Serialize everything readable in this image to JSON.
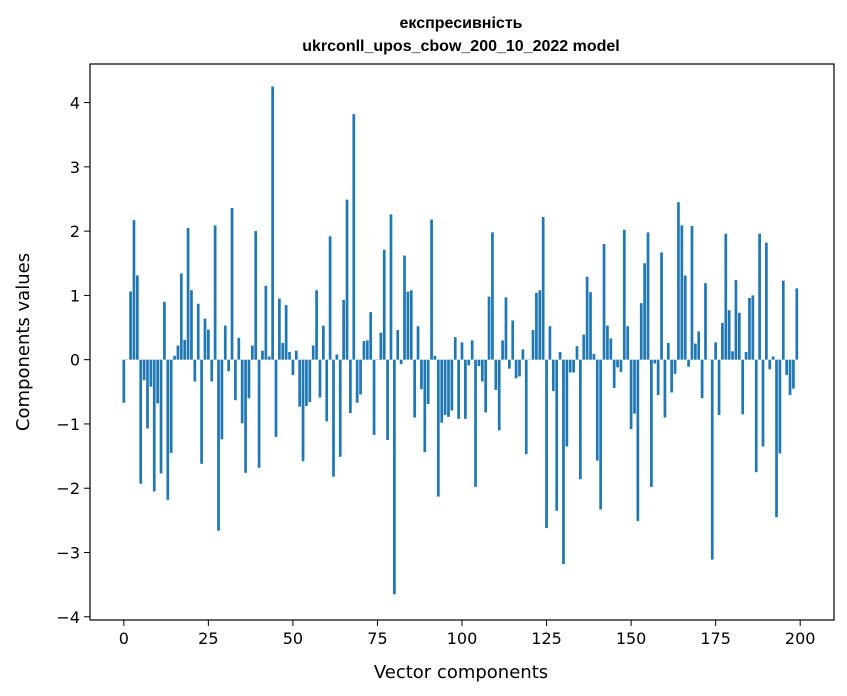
{
  "chart_data": {
    "type": "bar",
    "title": "експресивність",
    "subtitle": "ukrconll_upos_cbow_200_10_2022 model",
    "xlabel": "Vector components",
    "ylabel": "Components values",
    "xlim": [
      -10,
      210
    ],
    "ylim": [
      -4.05,
      4.6
    ],
    "xticks": [
      0,
      25,
      50,
      75,
      100,
      125,
      150,
      175,
      200
    ],
    "yticks": [
      -4,
      -3,
      -2,
      -1,
      0,
      1,
      2,
      3,
      4
    ],
    "ytick_labels": [
      "−4",
      "−3",
      "−2",
      "−1",
      "0",
      "1",
      "2",
      "3",
      "4"
    ],
    "bar_color": "#1f77b4",
    "grid": false,
    "x": [
      0,
      1,
      2,
      3,
      4,
      5,
      6,
      7,
      8,
      9,
      10,
      11,
      12,
      13,
      14,
      15,
      16,
      17,
      18,
      19,
      20,
      21,
      22,
      23,
      24,
      25,
      26,
      27,
      28,
      29,
      30,
      31,
      32,
      33,
      34,
      35,
      36,
      37,
      38,
      39,
      40,
      41,
      42,
      43,
      44,
      45,
      46,
      47,
      48,
      49,
      50,
      51,
      52,
      53,
      54,
      55,
      56,
      57,
      58,
      59,
      60,
      61,
      62,
      63,
      64,
      65,
      66,
      67,
      68,
      69,
      70,
      71,
      72,
      73,
      74,
      75,
      76,
      77,
      78,
      79,
      80,
      81,
      82,
      83,
      84,
      85,
      86,
      87,
      88,
      89,
      90,
      91,
      92,
      93,
      94,
      95,
      96,
      97,
      98,
      99,
      100,
      101,
      102,
      103,
      104,
      105,
      106,
      107,
      108,
      109,
      110,
      111,
      112,
      113,
      114,
      115,
      116,
      117,
      118,
      119,
      120,
      121,
      122,
      123,
      124,
      125,
      126,
      127,
      128,
      129,
      130,
      131,
      132,
      133,
      134,
      135,
      136,
      137,
      138,
      139,
      140,
      141,
      142,
      143,
      144,
      145,
      146,
      147,
      148,
      149,
      150,
      151,
      152,
      153,
      154,
      155,
      156,
      157,
      158,
      159,
      160,
      161,
      162,
      163,
      164,
      165,
      166,
      167,
      168,
      169,
      170,
      171,
      172,
      173,
      174,
      175,
      176,
      177,
      178,
      179,
      180,
      181,
      182,
      183,
      184,
      185,
      186,
      187,
      188,
      189,
      190,
      191,
      192,
      193,
      194,
      195,
      196,
      197,
      198,
      199
    ],
    "values": [
      -0.67,
      0.0,
      1.06,
      2.17,
      1.31,
      -1.93,
      -0.32,
      -1.07,
      -0.42,
      -2.05,
      -0.68,
      -1.77,
      0.9,
      -2.18,
      -1.45,
      0.06,
      0.22,
      1.34,
      0.31,
      2.05,
      1.08,
      -0.34,
      0.87,
      -1.62,
      0.64,
      0.47,
      -0.34,
      2.09,
      -2.66,
      -1.24,
      0.53,
      -0.18,
      2.36,
      -0.63,
      0.34,
      -0.99,
      -1.76,
      -0.6,
      0.22,
      2.0,
      -1.68,
      0.14,
      1.15,
      0.05,
      4.25,
      -1.2,
      0.95,
      0.26,
      0.85,
      0.12,
      -0.24,
      0.14,
      -0.73,
      -1.58,
      -0.72,
      -0.66,
      0.22,
      1.08,
      -0.59,
      0.53,
      -0.96,
      1.92,
      -1.82,
      0.08,
      -1.51,
      0.93,
      2.49,
      -0.83,
      3.82,
      -0.67,
      -0.54,
      0.29,
      0.3,
      0.74,
      -1.17,
      0.0,
      0.42,
      1.71,
      -1.25,
      2.26,
      -3.65,
      0.46,
      -0.07,
      1.62,
      1.06,
      1.08,
      -0.9,
      0.52,
      -0.46,
      -1.44,
      -0.69,
      2.18,
      0.06,
      -2.13,
      -0.98,
      -0.86,
      -0.89,
      -0.79,
      0.35,
      -0.92,
      0.27,
      -0.92,
      -0.09,
      0.3,
      -1.98,
      -0.1,
      -0.34,
      -0.82,
      0.98,
      1.98,
      -0.47,
      -1.1,
      0.3,
      0.97,
      -0.14,
      0.61,
      -0.29,
      -0.26,
      0.16,
      -1.47,
      0.0,
      0.46,
      1.04,
      1.08,
      2.22,
      -2.62,
      0.52,
      -0.49,
      -2.35,
      0.12,
      -3.18,
      -1.35,
      -0.2,
      -0.2,
      0.21,
      -1.86,
      0.39,
      1.29,
      1.05,
      0.09,
      -1.57,
      -2.33,
      1.8,
      0.53,
      0.33,
      -0.44,
      -0.12,
      -0.19,
      2.02,
      0.52,
      -1.08,
      -0.84,
      -2.51,
      0.88,
      1.5,
      1.98,
      -1.98,
      -0.06,
      -0.55,
      1.67,
      -0.9,
      0.26,
      -0.51,
      -0.22,
      2.45,
      2.09,
      1.31,
      -0.11,
      2.08,
      0.25,
      0.44,
      -0.6,
      1.19,
      0.0,
      -3.11,
      0.27,
      -0.86,
      0.57,
      1.96,
      0.77,
      0.13,
      1.24,
      0.73,
      -0.85,
      0.12,
      0.96,
      1.0,
      -1.75,
      1.96,
      -1.35,
      1.82,
      -0.15,
      0.05,
      -2.45,
      -1.46,
      1.23,
      -0.24,
      -0.55,
      -0.45,
      1.11
    ]
  }
}
